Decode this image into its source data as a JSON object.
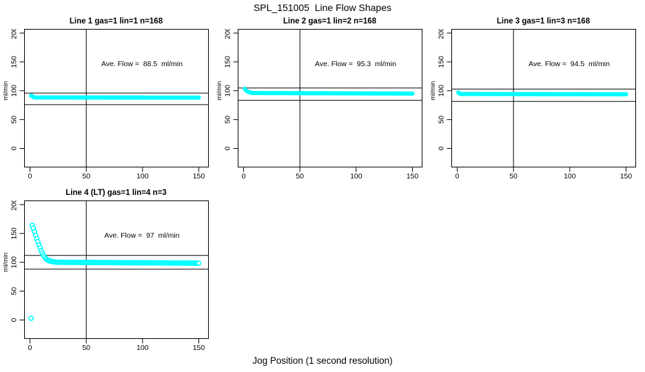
{
  "figure": {
    "title": "SPL_151005  Line Flow Shapes",
    "xlabel": "Jog Position (1 second resolution)"
  },
  "chart_data": {
    "type": "scatter",
    "title": "SPL_151005  Line Flow Shapes",
    "xlabel": "Jog Position (1 second resolution)",
    "ylabel": "ml/min",
    "layout": {
      "rows": 2,
      "cols": 3,
      "panels_used": 4,
      "grid": false,
      "legend": "none"
    },
    "axes": {
      "x_ticks": [
        0,
        50,
        100,
        150
      ],
      "y_ticks": [
        0,
        50,
        100,
        150,
        200
      ],
      "xlim": [
        -5,
        158
      ],
      "ylim": [
        -33,
        206
      ],
      "ylabel": "ml/min"
    },
    "colors": {
      "points": "#00ffff",
      "lines": "#000000",
      "background": "#ffffff",
      "text": "#000000"
    },
    "panels": [
      {
        "id": "line-1",
        "title": "Line 1 gas=1 lin=1 n=168",
        "annotation": "Ave. Flow =  88.5  ml/min",
        "ave_flow_ml_min": 88.5,
        "n": 168,
        "marker_style": "filled",
        "grid": {
          "row": 0,
          "col": 0
        },
        "ref_lines": {
          "vertical_x": 50,
          "upper": 96,
          "lower": 76
        },
        "points": [
          [
            1,
            91.5
          ],
          [
            2,
            90.5
          ],
          [
            3,
            89.5
          ]
        ],
        "baseline": {
          "x_from": 4,
          "x_to": 150,
          "y_from": 88.3,
          "y_to": 88.1
        }
      },
      {
        "id": "line-2",
        "title": "Line 2 gas=1 lin=2 n=168",
        "annotation": "Ave. Flow =  95.3  ml/min",
        "ave_flow_ml_min": 95.3,
        "n": 168,
        "marker_style": "filled",
        "grid": {
          "row": 0,
          "col": 1
        },
        "ref_lines": {
          "vertical_x": 50,
          "upper": 104.8,
          "lower": 83.5
        },
        "points": [
          [
            1,
            103.5
          ],
          [
            2,
            101
          ],
          [
            3,
            99.3
          ],
          [
            4,
            98.2
          ],
          [
            5,
            97.4
          ],
          [
            6,
            96.8
          ],
          [
            7,
            96.4
          ]
        ],
        "baseline": {
          "x_from": 8,
          "x_to": 150,
          "y_from": 96.1,
          "y_to": 95.1
        }
      },
      {
        "id": "line-3",
        "title": "Line 3 gas=1 lin=3 n=168",
        "annotation": "Ave. Flow =  94.5  ml/min",
        "ave_flow_ml_min": 94.5,
        "n": 168,
        "marker_style": "filled",
        "grid": {
          "row": 0,
          "col": 2
        },
        "ref_lines": {
          "vertical_x": 50,
          "upper": 103,
          "lower": 81.5
        },
        "points": [
          [
            1,
            97
          ],
          [
            2,
            95.5
          ]
        ],
        "baseline": {
          "x_from": 3,
          "x_to": 150,
          "y_from": 94.4,
          "y_to": 93.9
        }
      },
      {
        "id": "line-4",
        "title": "Line 4 (LT) gas=1 lin=4 n=3",
        "annotation": "Ave. Flow =  97  ml/min",
        "ave_flow_ml_min": 97,
        "n": 3,
        "marker_style": "open",
        "grid": {
          "row": 1,
          "col": 0
        },
        "ref_lines": {
          "vertical_x": 50,
          "upper": 112,
          "lower": 88
        },
        "points": [
          [
            1,
            3
          ],
          [
            2,
            164
          ],
          [
            3,
            159
          ],
          [
            4,
            153
          ],
          [
            5,
            147
          ],
          [
            6,
            141
          ],
          [
            7,
            136
          ],
          [
            8,
            130
          ],
          [
            9,
            125
          ],
          [
            10,
            120
          ],
          [
            11,
            116
          ],
          [
            12,
            112
          ],
          [
            13,
            109
          ],
          [
            14,
            106.5
          ],
          [
            15,
            104.5
          ],
          [
            16,
            103.5
          ],
          [
            17,
            102.7
          ],
          [
            18,
            102
          ],
          [
            19,
            101.6
          ],
          [
            20,
            101.2
          ],
          [
            21,
            100.9
          ],
          [
            22,
            100.6
          ],
          [
            23,
            100.4
          ],
          [
            24,
            100.2
          ],
          [
            25,
            100
          ]
        ],
        "baseline": {
          "x_from": 26,
          "x_to": 150,
          "y_from": 100,
          "y_to": 98.5
        }
      }
    ]
  }
}
